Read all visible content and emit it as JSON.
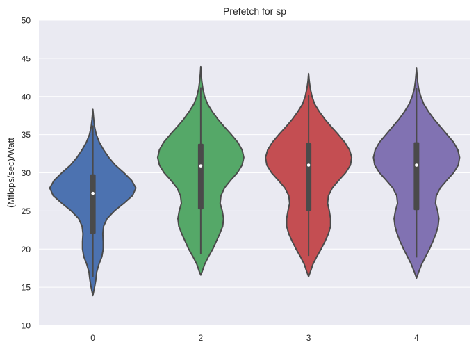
{
  "chart_data": {
    "type": "violin",
    "title": "Prefetch for sp",
    "xlabel": "",
    "ylabel": "(Mflops/sec)/Watt",
    "ylim": [
      10,
      50
    ],
    "yticks": [
      10,
      15,
      20,
      25,
      30,
      35,
      40,
      45,
      50
    ],
    "grid": true,
    "legend": "none",
    "background_color": "#eaeaf2",
    "line_color": "#4a4a4a",
    "categories": [
      "0",
      "2",
      "3",
      "4"
    ],
    "violins": [
      {
        "category": "0",
        "color": "#4c72b0",
        "min": 16.3,
        "q1": 22.0,
        "median": 27.3,
        "q3": 29.8,
        "max": 36.2,
        "kde_min": 13.9,
        "kde_max": 38.3,
        "profile": [
          [
            13.9,
            0.0
          ],
          [
            15,
            0.04
          ],
          [
            16,
            0.07
          ],
          [
            17,
            0.09
          ],
          [
            18,
            0.14
          ],
          [
            19,
            0.21
          ],
          [
            20,
            0.24
          ],
          [
            21,
            0.24
          ],
          [
            22,
            0.23
          ],
          [
            23,
            0.25
          ],
          [
            24,
            0.33
          ],
          [
            25,
            0.5
          ],
          [
            26,
            0.72
          ],
          [
            27,
            0.92
          ],
          [
            28,
            1.0
          ],
          [
            29,
            0.9
          ],
          [
            30,
            0.72
          ],
          [
            31,
            0.52
          ],
          [
            32,
            0.37
          ],
          [
            33,
            0.25
          ],
          [
            34,
            0.15
          ],
          [
            35,
            0.08
          ],
          [
            36,
            0.04
          ],
          [
            37,
            0.02
          ],
          [
            38.3,
            0.0
          ]
        ]
      },
      {
        "category": "2",
        "color": "#55a868",
        "min": 19.3,
        "q1": 25.2,
        "median": 30.9,
        "q3": 33.8,
        "max": 41.2,
        "kde_min": 16.6,
        "kde_max": 43.9,
        "profile": [
          [
            16.6,
            0.0
          ],
          [
            17,
            0.03
          ],
          [
            18,
            0.09
          ],
          [
            19,
            0.18
          ],
          [
            20,
            0.28
          ],
          [
            21,
            0.36
          ],
          [
            22,
            0.44
          ],
          [
            23,
            0.51
          ],
          [
            24,
            0.53
          ],
          [
            25,
            0.5
          ],
          [
            26,
            0.45
          ],
          [
            27,
            0.47
          ],
          [
            28,
            0.55
          ],
          [
            29,
            0.69
          ],
          [
            30,
            0.85
          ],
          [
            31,
            0.96
          ],
          [
            32,
            1.0
          ],
          [
            33,
            0.96
          ],
          [
            34,
            0.86
          ],
          [
            35,
            0.71
          ],
          [
            36,
            0.55
          ],
          [
            37,
            0.4
          ],
          [
            38,
            0.27
          ],
          [
            39,
            0.16
          ],
          [
            40,
            0.09
          ],
          [
            41,
            0.05
          ],
          [
            42,
            0.025
          ],
          [
            43,
            0.01
          ],
          [
            43.9,
            0.0
          ]
        ]
      },
      {
        "category": "3",
        "color": "#c44e52",
        "min": 19.1,
        "q1": 25.0,
        "median": 31.0,
        "q3": 33.9,
        "max": 40.2,
        "kde_min": 16.4,
        "kde_max": 43.0,
        "profile": [
          [
            16.4,
            0.0
          ],
          [
            17,
            0.04
          ],
          [
            18,
            0.1
          ],
          [
            19,
            0.19
          ],
          [
            20,
            0.29
          ],
          [
            21,
            0.38
          ],
          [
            22,
            0.46
          ],
          [
            23,
            0.51
          ],
          [
            24,
            0.51
          ],
          [
            25,
            0.48
          ],
          [
            26,
            0.44
          ],
          [
            27,
            0.46
          ],
          [
            28,
            0.55
          ],
          [
            29,
            0.7
          ],
          [
            30,
            0.86
          ],
          [
            31,
            0.97
          ],
          [
            32,
            1.0
          ],
          [
            33,
            0.95
          ],
          [
            34,
            0.84
          ],
          [
            35,
            0.69
          ],
          [
            36,
            0.53
          ],
          [
            37,
            0.38
          ],
          [
            38,
            0.25
          ],
          [
            39,
            0.14
          ],
          [
            40,
            0.08
          ],
          [
            41,
            0.04
          ],
          [
            42,
            0.015
          ],
          [
            43,
            0.0
          ]
        ]
      },
      {
        "category": "4",
        "color": "#8172b2",
        "min": 18.9,
        "q1": 25.1,
        "median": 31.0,
        "q3": 34.0,
        "max": 41.1,
        "kde_min": 16.2,
        "kde_max": 43.7,
        "profile": [
          [
            16.2,
            0.0
          ],
          [
            17,
            0.05
          ],
          [
            18,
            0.12
          ],
          [
            19,
            0.21
          ],
          [
            20,
            0.3
          ],
          [
            21,
            0.38
          ],
          [
            22,
            0.45
          ],
          [
            23,
            0.5
          ],
          [
            24,
            0.52
          ],
          [
            25,
            0.49
          ],
          [
            26,
            0.44
          ],
          [
            27,
            0.46
          ],
          [
            28,
            0.55
          ],
          [
            29,
            0.7
          ],
          [
            30,
            0.86
          ],
          [
            31,
            0.97
          ],
          [
            32,
            1.0
          ],
          [
            33,
            0.96
          ],
          [
            34,
            0.86
          ],
          [
            35,
            0.71
          ],
          [
            36,
            0.56
          ],
          [
            37,
            0.41
          ],
          [
            38,
            0.28
          ],
          [
            39,
            0.17
          ],
          [
            40,
            0.1
          ],
          [
            41,
            0.05
          ],
          [
            42,
            0.025
          ],
          [
            43,
            0.01
          ],
          [
            43.7,
            0.0
          ]
        ]
      }
    ]
  }
}
